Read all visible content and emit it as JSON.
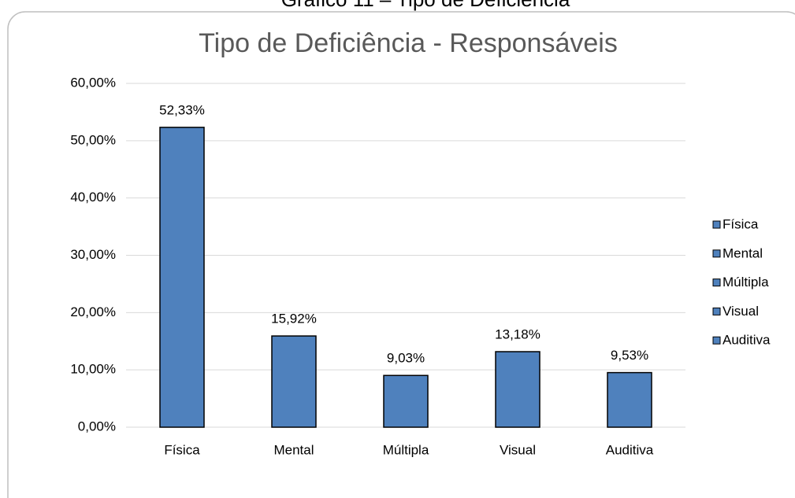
{
  "caption": "Gráfico 11 – Tipo de Deficiência",
  "chart_data": {
    "type": "bar",
    "title": "Tipo de Deficiência - Responsáveis",
    "categories": [
      "Física",
      "Mental",
      "Múltipla",
      "Visual",
      "Auditiva"
    ],
    "values": [
      52.33,
      15.92,
      9.03,
      13.18,
      9.53
    ],
    "value_labels": [
      "52,33%",
      "15,92%",
      "9,03%",
      "13,18%",
      "9,53%"
    ],
    "color": "#4f81bd",
    "ylim": [
      0,
      60
    ],
    "yticks": [
      {
        "value": 0,
        "label": "0,00%"
      },
      {
        "value": 10,
        "label": "10,00%"
      },
      {
        "value": 20,
        "label": "20,00%"
      },
      {
        "value": 30,
        "label": "30,00%"
      },
      {
        "value": 40,
        "label": "40,00%"
      },
      {
        "value": 50,
        "label": "50,00%"
      },
      {
        "value": 60,
        "label": "60,00%"
      }
    ],
    "grid": true,
    "legend": "right"
  }
}
